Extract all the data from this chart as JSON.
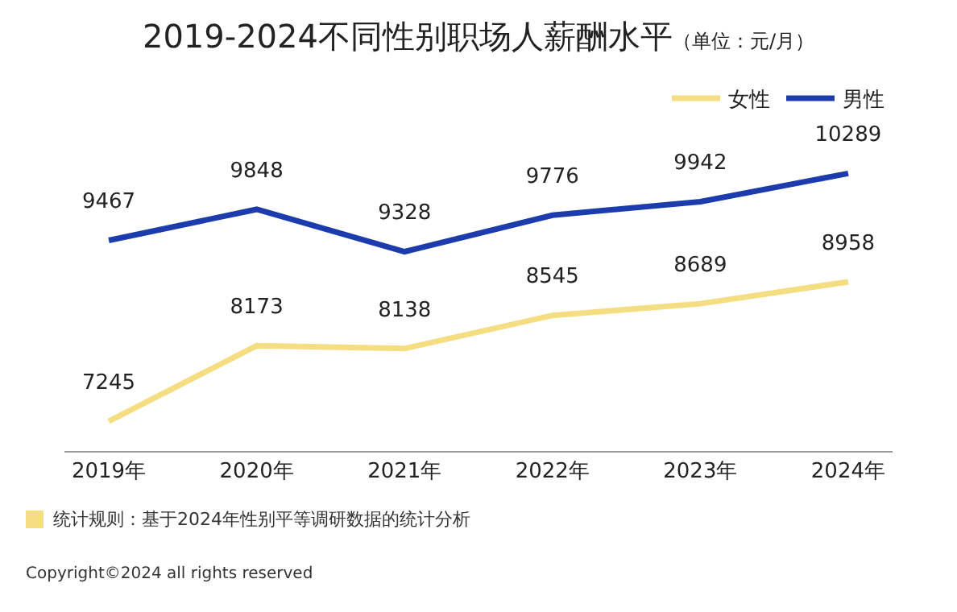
{
  "chart_data": {
    "type": "line",
    "title": "2019-2024不同性别职场人薪酬水平",
    "subtitle": "（单位：元/月）",
    "categories": [
      "2019年",
      "2020年",
      "2021年",
      "2022年",
      "2023年",
      "2024年"
    ],
    "series": [
      {
        "name": "女性",
        "color": "#f5dd82",
        "values": [
          7245,
          8173,
          8138,
          8545,
          8689,
          8958
        ]
      },
      {
        "name": "男性",
        "color": "#1c3cae",
        "values": [
          9467,
          9848,
          9328,
          9776,
          9942,
          10289
        ]
      }
    ],
    "data_labels": true,
    "legend": "top right",
    "grid": false,
    "marker": "none",
    "line_style": "solid",
    "annotations": [
      "统计规则：基于2024年性别平等调研数据的统计分析",
      "Copyright©2024 all rights reserved"
    ]
  }
}
